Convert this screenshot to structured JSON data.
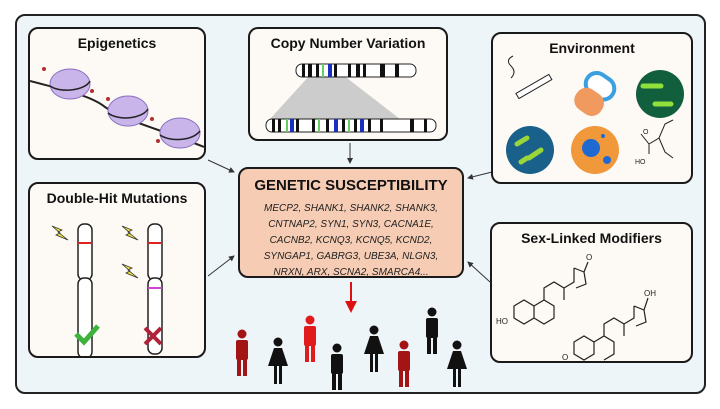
{
  "panels": {
    "epigenetics": {
      "title": "Epigenetics"
    },
    "cnv": {
      "title": "Copy Number Variation"
    },
    "environment": {
      "title": "Environment"
    },
    "double_hit": {
      "title": "Double-Hit Mutations"
    },
    "sex_linked": {
      "title": "Sex-Linked Modifiers",
      "labels": {
        "oh1": "HO",
        "o1": "O",
        "oh2": "OH",
        "o2": "O"
      }
    },
    "center": {
      "title": "GENETIC SUSCEPTIBILITY",
      "gene_lines": [
        "MECP2, SHANK1, SHANK2, SHANK3,",
        "CNTNAP2, SYN1, SYN3, CACNA1E,",
        "CACNB2, KCNQ3, KCNQ5, KCND2,",
        "SYNGAP1, GABRG3, UBE3A, NLGN3,",
        "NRXN, ARX, SCNA2, SMARCA4..."
      ]
    }
  },
  "env_labels": {
    "o": "O",
    "ho": "HO"
  },
  "colors": {
    "center_fill": "#f6cdb4",
    "affected": "#a31515",
    "check": "#3db33d",
    "cross": "#b0213a",
    "frame_bg": "#eef5f9"
  }
}
